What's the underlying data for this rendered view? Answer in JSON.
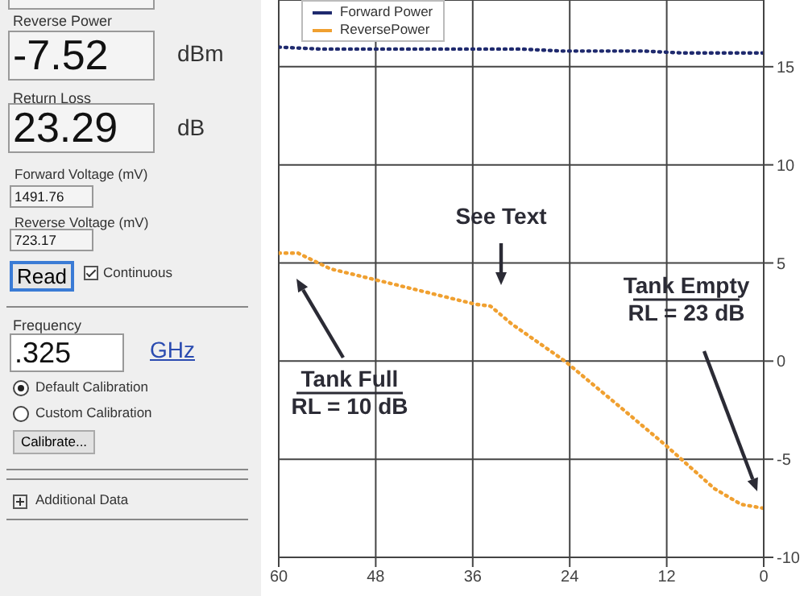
{
  "chart_data": [
    {
      "type": "other",
      "annotations": [
        "Reverse Power",
        "-7.52",
        "dBm",
        "Return Loss",
        "23.29",
        "dB",
        "Forward Voltage (mV)",
        "1491.76",
        "Reverse Voltage (mV)",
        "723.17",
        "Read",
        "Continuous",
        "Frequency",
        ".325",
        "GHz",
        "Default Calibration",
        "Custom Calibration",
        "Calibrate...",
        "Additional Data"
      ]
    },
    {
      "type": "line",
      "xlim": [
        60,
        0
      ],
      "xticks": [
        60,
        48,
        36,
        24,
        12,
        0
      ],
      "ylim": [
        -10,
        18.4
      ],
      "yticks": [
        -10,
        -5,
        0,
        5,
        10,
        15
      ],
      "grid": true,
      "legend": "top left",
      "line_style": "dotted",
      "series": [
        {
          "name": "Forward Power",
          "color": "#1f2a6e",
          "x": [
            60,
            55,
            50,
            45,
            40,
            35,
            30,
            25,
            20,
            15,
            10,
            5,
            0
          ],
          "values": [
            16.0,
            15.9,
            15.9,
            15.9,
            15.9,
            15.9,
            15.9,
            15.8,
            15.8,
            15.8,
            15.7,
            15.7,
            15.7
          ]
        },
        {
          "name": "ReversePower",
          "color": "#f0a030",
          "x": [
            60,
            57.6,
            53.6,
            45.6,
            35.7,
            33.8,
            31.2,
            24.6,
            17.3,
            12.1,
            6.1,
            2.8,
            0
          ],
          "values": [
            5.5,
            5.5,
            4.7,
            3.9,
            2.9,
            2.8,
            1.9,
            0.0,
            -2.5,
            -4.3,
            -6.5,
            -7.3,
            -7.5
          ]
        }
      ],
      "annotations": [
        "Tank Full\nRL = 10 dB",
        "See Text",
        "Tank Empty\nRL = 23 dB"
      ]
    }
  ]
}
